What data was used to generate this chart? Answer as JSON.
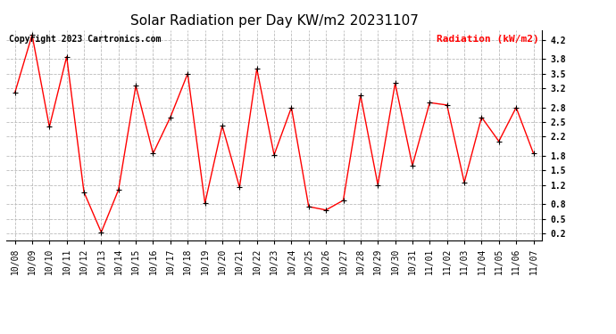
{
  "title": "Solar Radiation per Day KW/m2 20231107",
  "legend_label": "Radiation (kW/m2)",
  "copyright_text": "Copyright 2023 Cartronics.com",
  "dates": [
    "10/08",
    "10/09",
    "10/10",
    "10/11",
    "10/12",
    "10/13",
    "10/14",
    "10/15",
    "10/16",
    "10/17",
    "10/18",
    "10/19",
    "10/20",
    "10/21",
    "10/22",
    "10/23",
    "10/24",
    "10/25",
    "10/26",
    "10/27",
    "10/28",
    "10/29",
    "10/30",
    "10/31",
    "11/01",
    "11/02",
    "11/03",
    "11/04",
    "11/05",
    "11/06",
    "11/07"
  ],
  "values": [
    3.1,
    4.3,
    2.4,
    3.85,
    1.05,
    0.22,
    1.1,
    3.25,
    1.85,
    2.6,
    3.5,
    0.82,
    2.42,
    1.15,
    3.6,
    1.82,
    2.8,
    0.75,
    0.68,
    0.88,
    3.05,
    1.2,
    3.3,
    1.6,
    2.9,
    2.85,
    1.25,
    2.6,
    2.1,
    2.8,
    1.85
  ],
  "line_color": "red",
  "marker_color": "black",
  "ylim": [
    0.05,
    4.4
  ],
  "yticks": [
    0.2,
    0.5,
    0.8,
    1.2,
    1.5,
    1.8,
    2.2,
    2.5,
    2.8,
    3.2,
    3.5,
    3.8,
    4.2
  ],
  "grid_color": "#bbbbbb",
  "background_color": "#ffffff",
  "title_fontsize": 11,
  "legend_fontsize": 8,
  "copyright_fontsize": 7,
  "tick_labelsize": 7
}
